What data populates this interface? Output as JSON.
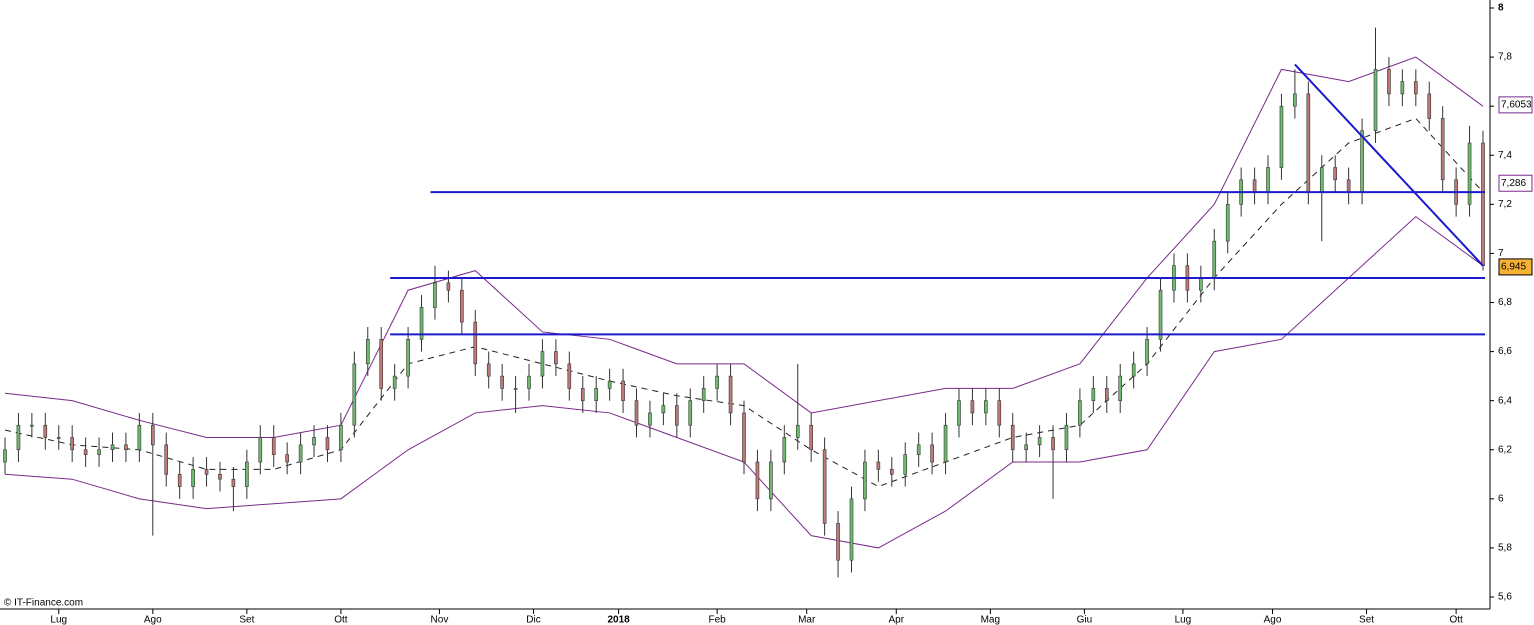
{
  "chart_data": {
    "type": "candlestick",
    "watermark": "© IT-Finance.com",
    "x": [
      0,
      3,
      6,
      9,
      12,
      15,
      18,
      21,
      24,
      27,
      30,
      33,
      36,
      39,
      42,
      45,
      48,
      51,
      54,
      57,
      60,
      63,
      66,
      69,
      72,
      75,
      78,
      81,
      84,
      87,
      90,
      93,
      96,
      99,
      102,
      105,
      108,
      111,
      114,
      117,
      120,
      123,
      126,
      129,
      132,
      135,
      138,
      141,
      144,
      147,
      150,
      153,
      156,
      159,
      162,
      165,
      168,
      171,
      174,
      177,
      180,
      183,
      186,
      189,
      192,
      195,
      198,
      201,
      204,
      207,
      210,
      213,
      216,
      219,
      222,
      225,
      228,
      231,
      234,
      237,
      240,
      243,
      246,
      249,
      252,
      255,
      258,
      261,
      264,
      267,
      270,
      273,
      276,
      279,
      282,
      285,
      288,
      291,
      294,
      297,
      300,
      303,
      306,
      309,
      312,
      315,
      318,
      321,
      324,
      327,
      330
    ],
    "open": [
      6.15,
      6.2,
      6.3,
      6.3,
      6.25,
      6.25,
      6.2,
      6.18,
      6.2,
      6.22,
      6.2,
      6.3,
      6.22,
      6.1,
      6.05,
      6.12,
      6.1,
      6.08,
      6.05,
      6.15,
      6.25,
      6.18,
      6.15,
      6.22,
      6.25,
      6.2,
      6.3,
      6.55,
      6.65,
      6.45,
      6.5,
      6.65,
      6.78,
      6.88,
      6.85,
      6.72,
      6.55,
      6.5,
      6.45,
      6.45,
      6.5,
      6.6,
      6.55,
      6.45,
      6.4,
      6.45,
      6.48,
      6.4,
      6.3,
      6.35,
      6.38,
      6.3,
      6.4,
      6.45,
      6.5,
      6.35,
      6.15,
      6.0,
      6.15,
      6.25,
      6.3,
      6.2,
      5.9,
      5.75,
      6.0,
      6.15,
      6.12,
      6.1,
      6.18,
      6.22,
      6.15,
      6.3,
      6.4,
      6.35,
      6.4,
      6.3,
      6.2,
      6.22,
      6.25,
      6.2,
      6.3,
      6.4,
      6.45,
      6.4,
      6.5,
      6.55,
      6.65,
      6.85,
      6.95,
      6.85,
      6.9,
      7.05,
      7.2,
      7.3,
      7.25,
      7.35,
      7.6,
      7.65,
      7.25,
      7.35,
      7.3,
      7.25,
      7.5,
      7.75,
      7.65,
      7.7,
      7.65,
      7.55,
      7.3,
      7.2,
      7.45
    ],
    "high": [
      6.25,
      6.35,
      6.35,
      6.35,
      6.3,
      6.3,
      6.25,
      6.25,
      6.27,
      6.27,
      6.35,
      6.35,
      6.27,
      6.15,
      6.17,
      6.17,
      6.15,
      6.13,
      6.2,
      6.3,
      6.3,
      6.23,
      6.27,
      6.3,
      6.3,
      6.35,
      6.6,
      6.7,
      6.7,
      6.55,
      6.7,
      6.83,
      6.95,
      6.93,
      6.9,
      6.77,
      6.6,
      6.55,
      6.5,
      6.55,
      6.65,
      6.65,
      6.6,
      6.5,
      6.5,
      6.53,
      6.53,
      6.45,
      6.4,
      6.43,
      6.43,
      6.45,
      6.5,
      6.55,
      6.55,
      6.4,
      6.2,
      6.2,
      6.3,
      6.55,
      6.35,
      6.25,
      5.95,
      6.05,
      6.2,
      6.2,
      6.17,
      6.23,
      6.27,
      6.27,
      6.35,
      6.45,
      6.45,
      6.45,
      6.45,
      6.35,
      6.27,
      6.3,
      6.3,
      6.35,
      6.45,
      6.5,
      6.5,
      6.55,
      6.6,
      6.7,
      6.9,
      7.0,
      7.0,
      6.95,
      7.1,
      7.25,
      7.35,
      7.35,
      7.4,
      7.65,
      7.75,
      7.7,
      7.4,
      7.4,
      7.35,
      7.55,
      7.92,
      7.8,
      7.75,
      7.75,
      7.7,
      7.6,
      7.35,
      7.52,
      7.5
    ],
    "low": [
      6.1,
      6.15,
      6.25,
      6.2,
      6.2,
      6.15,
      6.13,
      6.13,
      6.15,
      6.15,
      6.15,
      5.85,
      6.05,
      6.0,
      6.0,
      6.05,
      6.03,
      5.95,
      6.0,
      6.1,
      6.13,
      6.1,
      6.1,
      6.17,
      6.15,
      6.15,
      6.25,
      6.5,
      6.4,
      6.4,
      6.45,
      6.6,
      6.73,
      6.8,
      6.67,
      6.5,
      6.45,
      6.4,
      6.35,
      6.4,
      6.45,
      6.5,
      6.4,
      6.35,
      6.35,
      6.4,
      6.35,
      6.25,
      6.25,
      6.3,
      6.25,
      6.25,
      6.35,
      6.4,
      6.3,
      6.1,
      5.95,
      5.95,
      6.1,
      6.2,
      6.15,
      5.85,
      5.68,
      5.7,
      5.95,
      6.07,
      6.05,
      6.05,
      6.13,
      6.1,
      6.1,
      6.25,
      6.3,
      6.3,
      6.25,
      6.15,
      6.15,
      6.17,
      6.0,
      6.15,
      6.25,
      6.35,
      6.35,
      6.35,
      6.45,
      6.5,
      6.6,
      6.8,
      6.8,
      6.8,
      6.85,
      7.0,
      7.15,
      7.2,
      7.2,
      7.3,
      7.55,
      7.2,
      7.05,
      7.25,
      7.2,
      7.2,
      7.45,
      7.6,
      7.6,
      7.6,
      7.5,
      7.25,
      7.15,
      7.15,
      6.93
    ],
    "close": [
      6.2,
      6.3,
      6.3,
      6.25,
      6.25,
      6.2,
      6.18,
      6.2,
      6.22,
      6.2,
      6.3,
      6.22,
      6.1,
      6.05,
      6.12,
      6.1,
      6.08,
      6.05,
      6.15,
      6.25,
      6.18,
      6.15,
      6.22,
      6.25,
      6.2,
      6.3,
      6.55,
      6.65,
      6.45,
      6.5,
      6.65,
      6.78,
      6.88,
      6.85,
      6.72,
      6.55,
      6.5,
      6.45,
      6.45,
      6.5,
      6.6,
      6.55,
      6.45,
      6.4,
      6.45,
      6.48,
      6.4,
      6.3,
      6.35,
      6.38,
      6.3,
      6.4,
      6.45,
      6.5,
      6.35,
      6.15,
      6.0,
      6.15,
      6.25,
      6.3,
      6.2,
      5.9,
      5.75,
      6.0,
      6.15,
      6.12,
      6.1,
      6.18,
      6.22,
      6.15,
      6.3,
      6.4,
      6.35,
      6.4,
      6.3,
      6.2,
      6.22,
      6.25,
      6.2,
      6.3,
      6.4,
      6.45,
      6.4,
      6.5,
      6.55,
      6.65,
      6.85,
      6.95,
      6.85,
      6.9,
      7.05,
      7.2,
      7.3,
      7.25,
      7.35,
      7.6,
      7.65,
      7.25,
      7.35,
      7.3,
      7.25,
      7.5,
      7.75,
      7.65,
      7.7,
      7.65,
      7.55,
      7.3,
      7.2,
      7.45,
      6.95
    ],
    "up_color": "#6dbb6d",
    "down_color": "#c07878",
    "bands": {
      "x": [
        0,
        15,
        30,
        45,
        60,
        75,
        90,
        105,
        120,
        135,
        150,
        165,
        180,
        195,
        210,
        225,
        240,
        255,
        270,
        285,
        300,
        315,
        330
      ],
      "series": [
        {
          "color": "#7a2a8c",
          "dash": false,
          "values": [
            6.43,
            6.4,
            6.32,
            6.25,
            6.25,
            6.3,
            6.85,
            6.93,
            6.68,
            6.65,
            6.55,
            6.55,
            6.35,
            6.4,
            6.45,
            6.45,
            6.55,
            6.9,
            7.2,
            7.75,
            7.7,
            7.8,
            7.6
          ]
        },
        {
          "color": "#222222",
          "dash": true,
          "values": [
            6.28,
            6.22,
            6.2,
            6.12,
            6.12,
            6.2,
            6.55,
            6.62,
            6.55,
            6.48,
            6.42,
            6.38,
            6.2,
            6.05,
            6.15,
            6.25,
            6.3,
            6.55,
            6.9,
            7.2,
            7.45,
            7.55,
            7.25
          ]
        },
        {
          "color": "#7a2a8c",
          "dash": false,
          "values": [
            6.1,
            6.08,
            6.0,
            5.96,
            5.98,
            6.0,
            6.2,
            6.35,
            6.38,
            6.35,
            6.25,
            6.15,
            5.85,
            5.8,
            5.95,
            6.15,
            6.15,
            6.2,
            6.6,
            6.65,
            6.9,
            7.15,
            6.95
          ]
        }
      ]
    },
    "lines": {
      "color": "#1a1acc",
      "hlines": [
        {
          "value": 7.25,
          "from": 95
        },
        {
          "value": 6.9,
          "from": 86
        },
        {
          "value": 6.67,
          "from": 86
        }
      ],
      "trend": {
        "x": [
          288,
          330
        ],
        "values": [
          7.77,
          6.95
        ]
      }
    },
    "price_labels": [
      {
        "value": 7.6053,
        "label": "7,6053",
        "color": "#7a2a8c",
        "fill": "#ffffff"
      },
      {
        "value": 7.286,
        "label": "7,286",
        "color": "#7a2a8c",
        "fill": "#ffffff"
      },
      {
        "value": 6.945,
        "label": "6,945",
        "color": "#000000",
        "fill": "#f7b233"
      }
    ],
    "xlim": [
      0,
      331
    ],
    "xticks": [
      {
        "value": 12,
        "label": "Lug"
      },
      {
        "value": 33,
        "label": "Ago"
      },
      {
        "value": 54,
        "label": "Set"
      },
      {
        "value": 75,
        "label": "Ott"
      },
      {
        "value": 97,
        "label": "Nov"
      },
      {
        "value": 118,
        "label": "Dic"
      },
      {
        "value": 137,
        "label": "2018"
      },
      {
        "value": 159,
        "label": "Feb"
      },
      {
        "value": 179,
        "label": "Mar"
      },
      {
        "value": 199,
        "label": "Apr"
      },
      {
        "value": 220,
        "label": "Mag"
      },
      {
        "value": 241,
        "label": "Giu"
      },
      {
        "value": 263,
        "label": "Lug"
      },
      {
        "value": 283,
        "label": "Ago"
      },
      {
        "value": 304,
        "label": "Set"
      },
      {
        "value": 324,
        "label": "Ott"
      }
    ],
    "ylim": [
      5.6,
      8
    ],
    "yticks": [
      {
        "value": 5.6,
        "label": "5,6"
      },
      {
        "value": 5.8,
        "label": "5,8"
      },
      6,
      {
        "value": 6.2,
        "label": "6,2"
      },
      {
        "value": 6.4,
        "label": "6,4"
      },
      {
        "value": 6.6,
        "label": "6,6"
      },
      {
        "value": 6.8,
        "label": "6,8"
      },
      7,
      {
        "value": 7.2,
        "label": "7,2"
      },
      {
        "value": 7.4,
        "label": "7,4"
      },
      {
        "value": 7.6,
        "label": "7,6"
      },
      {
        "value": 7.8,
        "label": "7,8"
      },
      8
    ]
  }
}
